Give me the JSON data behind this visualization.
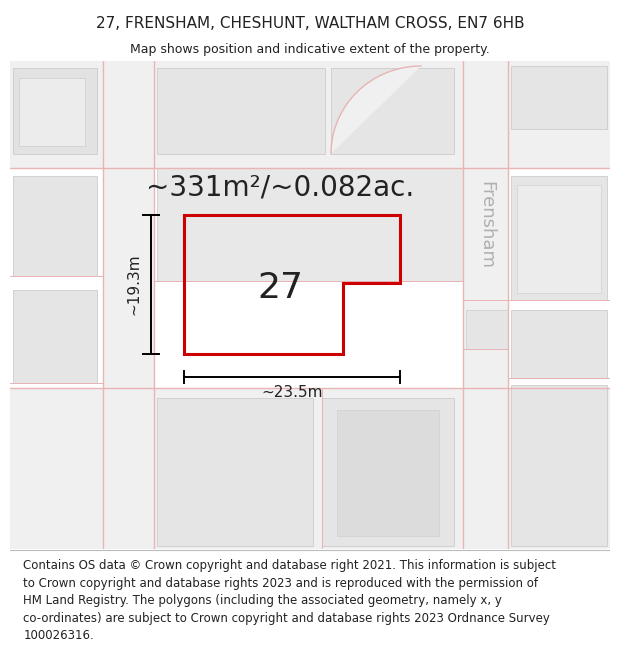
{
  "title_line1": "27, FRENSHAM, CHESHUNT, WALTHAM CROSS, EN7 6HB",
  "title_line2": "Map shows position and indicative extent of the property.",
  "area_label": "~331m²/~0.082ac.",
  "number_label": "27",
  "dim_width": "~23.5m",
  "dim_height": "~19.3m",
  "street_label": "Frensham",
  "copyright_text": "Contains OS data © Crown copyright and database right 2021. This information is subject\nto Crown copyright and database rights 2023 and is reproduced with the permission of\nHM Land Registry. The polygons (including the associated geometry, namely x, y\nco-ordinates) are subject to Crown copyright and database rights 2023 Ordnance Survey\n100026316.",
  "map_bg": "#ffffff",
  "plot_color": "#cc0000",
  "road_color": "#e8b4b4",
  "block_fill": "#e8e8e8",
  "block_edge": "#cccccc",
  "text_color": "#222222",
  "title_fontsize": 11,
  "subtitle_fontsize": 9,
  "area_fontsize": 20,
  "num_fontsize": 26,
  "street_fontsize": 13,
  "dim_fontsize": 11,
  "footer_fontsize": 8.5
}
